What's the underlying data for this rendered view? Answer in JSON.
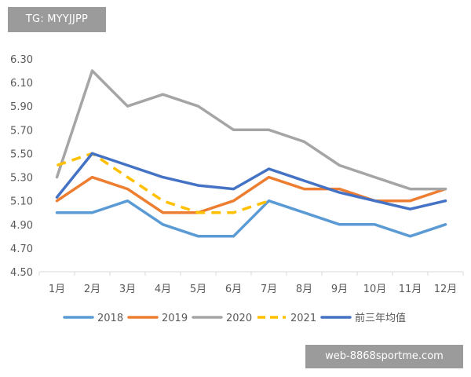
{
  "watermarks": {
    "top": "TG: MYYJJPP",
    "bottom": "web-8868sportme.com"
  },
  "chart_data": {
    "type": "line",
    "categories": [
      "1月",
      "2月",
      "3月",
      "4月",
      "5月",
      "6月",
      "7月",
      "8月",
      "9月",
      "10月",
      "11月",
      "12月"
    ],
    "ylim": [
      4.5,
      6.3
    ],
    "yticks": [
      "4.50",
      "4.70",
      "4.90",
      "5.10",
      "5.30",
      "5.50",
      "5.70",
      "5.90",
      "6.10",
      "6.30"
    ],
    "grid": false,
    "legend": "bottom",
    "series": [
      {
        "name": "2018",
        "color": "#5b9bd5",
        "dash": "solid",
        "values": [
          5.0,
          5.0,
          5.1,
          4.9,
          4.8,
          4.8,
          5.1,
          5.0,
          4.9,
          4.9,
          4.8,
          4.9
        ]
      },
      {
        "name": "2019",
        "color": "#ed7d31",
        "dash": "solid",
        "values": [
          5.1,
          5.3,
          5.2,
          5.0,
          5.0,
          5.1,
          5.3,
          5.2,
          5.2,
          5.1,
          5.1,
          5.2
        ]
      },
      {
        "name": "2020",
        "color": "#a5a5a5",
        "dash": "solid",
        "values": [
          5.3,
          6.2,
          5.9,
          6.0,
          5.9,
          5.7,
          5.7,
          5.6,
          5.4,
          5.3,
          5.2,
          5.2
        ]
      },
      {
        "name": "2021",
        "color": "#ffc000",
        "dash": "dashed",
        "values": [
          5.4,
          5.5,
          5.3,
          5.1,
          5.0,
          5.0,
          5.1,
          null,
          null,
          null,
          null,
          null
        ]
      },
      {
        "name": "前三年均值",
        "color": "#4472c4",
        "dash": "solid",
        "values": [
          5.13,
          5.5,
          5.4,
          5.3,
          5.23,
          5.2,
          5.37,
          5.27,
          5.17,
          5.1,
          5.03,
          5.1
        ]
      }
    ]
  }
}
